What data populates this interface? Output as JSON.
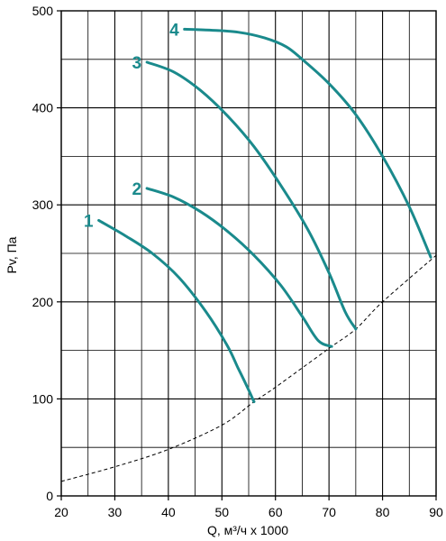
{
  "chart_data": {
    "type": "line",
    "title": "",
    "xlabel": "Q, м³/ч x 1000",
    "ylabel": "Pv, Па",
    "xlim": [
      20,
      90
    ],
    "ylim": [
      0,
      500
    ],
    "x_ticks": [
      20,
      30,
      40,
      50,
      60,
      70,
      80,
      90
    ],
    "y_ticks": [
      0,
      100,
      200,
      300,
      400,
      500
    ],
    "x_tick_labels": [
      "20",
      "30",
      "40",
      "50",
      "60",
      "70",
      "80",
      "90"
    ],
    "y_tick_labels": [
      "0",
      "100",
      "200",
      "300",
      "400",
      "500"
    ],
    "grid": true,
    "curve_color": "#1a8a8c",
    "series": [
      {
        "name": "1",
        "x": [
          27,
          32,
          37,
          42,
          47,
          51,
          53,
          54.5,
          56
        ],
        "y": [
          284,
          268,
          250,
          225,
          190,
          155,
          132,
          115,
          97
        ]
      },
      {
        "name": "2",
        "x": [
          36,
          41,
          46,
          51,
          56,
          61,
          65,
          68,
          70.5
        ],
        "y": [
          317,
          308,
          293,
          273,
          248,
          217,
          185,
          160,
          154
        ]
      },
      {
        "name": "3",
        "x": [
          36,
          41,
          46,
          51,
          56,
          61,
          66,
          70,
          73,
          75
        ],
        "y": [
          447,
          437,
          418,
          392,
          360,
          320,
          275,
          230,
          190,
          172
        ]
      },
      {
        "name": "4",
        "x": [
          43,
          48,
          53,
          58,
          62,
          65,
          70,
          75,
          80,
          85,
          89
        ],
        "y": [
          481,
          480,
          478,
          472,
          463,
          450,
          425,
          393,
          350,
          298,
          246
        ]
      }
    ],
    "limit_curve": {
      "style": "dashed",
      "x": [
        20,
        30,
        40,
        50,
        56,
        60,
        70,
        75,
        80,
        90
      ],
      "y": [
        15,
        30,
        48,
        73,
        97,
        112,
        152,
        172,
        200,
        248
      ]
    }
  }
}
